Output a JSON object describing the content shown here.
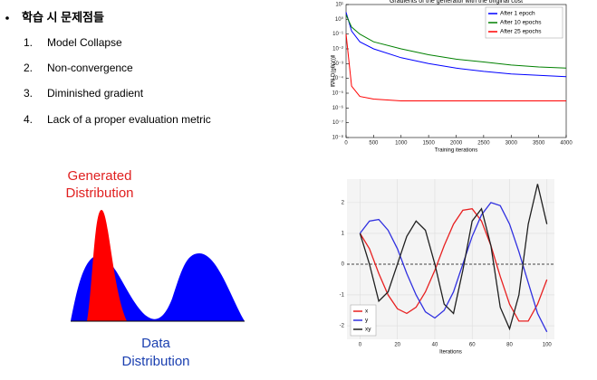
{
  "bullet": {
    "title": "학습 시 문제점들",
    "items": [
      {
        "number": "1.",
        "text": "Model Collapse"
      },
      {
        "number": "2.",
        "text": "Non-convergence"
      },
      {
        "number": "3.",
        "text": "Diminished gradient"
      },
      {
        "number": "4.",
        "text": "Lack of a proper evaluation metric"
      }
    ]
  },
  "diagram": {
    "generated": [
      "Generated",
      "Distribution"
    ],
    "data": [
      "Data",
      "Distribution"
    ]
  },
  "chart_data": [
    {
      "type": "line",
      "title": "Gradients of the generator with the original cost",
      "x_label": "Training iterations",
      "y_label": "‖∇θ D(gθ(z))‖",
      "log_y": true,
      "xlim": [
        0,
        4000
      ],
      "ylim": [
        1e-08,
        10
      ],
      "xticks": [
        0,
        500,
        1000,
        1500,
        2000,
        2500,
        3000,
        3500,
        4000
      ],
      "yticks": [
        {
          "value": 10,
          "label": "10¹"
        },
        {
          "value": 1,
          "label": "10⁰"
        },
        {
          "value": 0.1,
          "label": "10⁻¹"
        },
        {
          "value": 0.01,
          "label": "10⁻²"
        },
        {
          "value": 0.001,
          "label": "10⁻³"
        },
        {
          "value": 0.0001,
          "label": "10⁻⁴"
        },
        {
          "value": 1e-05,
          "label": "10⁻⁵"
        },
        {
          "value": 1e-06,
          "label": "10⁻⁶"
        },
        {
          "value": 1e-07,
          "label": "10⁻⁷"
        },
        {
          "value": 1e-08,
          "label": "10⁻⁸"
        }
      ],
      "grid": false,
      "legend": "upper right",
      "x": [
        0,
        100,
        250,
        500,
        1000,
        1500,
        2000,
        2500,
        3000,
        3500,
        4000
      ],
      "series": [
        {
          "name": "After 1 epoch",
          "color": "#0000ff",
          "values": [
            3,
            0.16,
            0.03,
            0.01,
            0.0025,
            0.001,
            0.0005,
            0.0003,
            0.0002,
            0.00016,
            0.00013
          ]
        },
        {
          "name": "After 10 epochs",
          "color": "#008000",
          "values": [
            2,
            0.3,
            0.1,
            0.03,
            0.01,
            0.004,
            0.002,
            0.0013,
            0.0008,
            0.0006,
            0.0005
          ]
        },
        {
          "name": "After 25 epochs",
          "color": "#ff0000",
          "values": [
            0.1,
            3e-05,
            6e-06,
            4e-06,
            3e-06,
            3e-06,
            3e-06,
            3e-06,
            3e-06,
            3e-06,
            3e-06
          ]
        }
      ]
    },
    {
      "type": "line",
      "x_label": "Iterations",
      "log_y": false,
      "xlim": [
        -7,
        104
      ],
      "ylim": [
        -2.44,
        2.76
      ],
      "xticks": [
        0,
        20,
        40,
        60,
        80,
        100
      ],
      "yticks": [
        -2,
        -1,
        0,
        1,
        2
      ],
      "grid": true,
      "legend": "lower left",
      "x": [
        0,
        5,
        10,
        15,
        20,
        25,
        30,
        35,
        40,
        45,
        50,
        55,
        60,
        65,
        70,
        75,
        80,
        85,
        90,
        95,
        100
      ],
      "series": [
        {
          "name": "x",
          "color": "#e82020",
          "values": [
            1,
            0.5,
            -0.3,
            -1.0,
            -1.45,
            -1.6,
            -1.4,
            -0.9,
            -0.2,
            0.6,
            1.3,
            1.75,
            1.8,
            1.4,
            0.6,
            -0.4,
            -1.3,
            -1.85,
            -1.85,
            -1.3,
            -0.5
          ]
        },
        {
          "name": "y",
          "color": "#3030e0",
          "values": [
            1,
            1.4,
            1.45,
            1.1,
            0.5,
            -0.3,
            -1.0,
            -1.55,
            -1.75,
            -1.5,
            -0.9,
            0,
            0.9,
            1.6,
            2.0,
            1.9,
            1.3,
            0.4,
            -0.6,
            -1.6,
            -2.2
          ]
        },
        {
          "name": "xy",
          "color": "#202020",
          "values": [
            1,
            0,
            -1.2,
            -0.9,
            0,
            0.9,
            1.4,
            1.1,
            0,
            -1.3,
            -1.6,
            -0.2,
            1.4,
            1.8,
            0.6,
            -1.4,
            -2.1,
            -1.0,
            1.3,
            2.6,
            1.3
          ]
        }
      ]
    }
  ]
}
